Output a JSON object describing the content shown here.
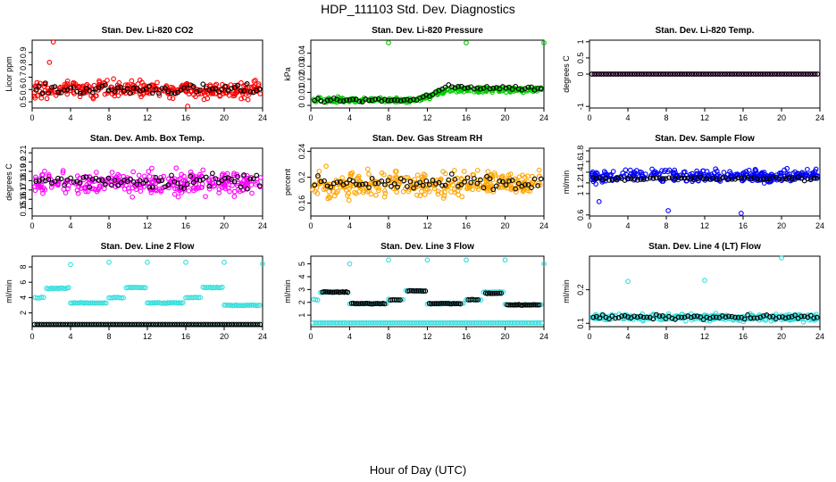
{
  "figure": {
    "title": "HDP_111103  Std. Dev. Diagnostics",
    "xlabel": "Hour of Day (UTC)"
  },
  "chart_data": [
    {
      "type": "scatter",
      "title": "Stan. Dev. Li-820 CO2",
      "ylabel": "Licor ppm",
      "xlim": [
        0,
        24
      ],
      "xticks": [
        0,
        4,
        8,
        12,
        16,
        20,
        24
      ],
      "ylim": [
        0.45,
        1.0
      ],
      "yticks": [
        0.5,
        0.6,
        0.7,
        0.8,
        0.9
      ],
      "series": [
        {
          "name": "samples",
          "color": "#ff0000",
          "style": "dense",
          "center": 0.6,
          "spread": 0.07,
          "outliers": [
            {
              "x": 2.2,
              "y": 0.99
            },
            {
              "x": 1.8,
              "y": 0.82
            },
            {
              "x": 16.2,
              "y": 0.44
            }
          ]
        },
        {
          "name": "means",
          "color": "#000000",
          "style": "sparse",
          "center": 0.6,
          "spread": 0.05
        }
      ]
    },
    {
      "type": "scatter",
      "title": "Stan. Dev. Li-820 Pressure",
      "ylabel": "kPa",
      "xlim": [
        0,
        24
      ],
      "xticks": [
        0,
        4,
        8,
        12,
        16,
        20,
        24
      ],
      "ylim": [
        -0.002,
        0.05
      ],
      "yticks": [
        0.0,
        0.01,
        0.02,
        0.03,
        0.04
      ],
      "series": [
        {
          "name": "samples",
          "color": "#00cc00",
          "style": "dense",
          "center": 0.004,
          "spread": 0.002,
          "trend": [
            {
              "x": 0,
              "y": 0.004
            },
            {
              "x": 11,
              "y": 0.004
            },
            {
              "x": 14,
              "y": 0.012
            },
            {
              "x": 24,
              "y": 0.012
            }
          ],
          "outliers": [
            {
              "x": 8,
              "y": 0.048
            },
            {
              "x": 16,
              "y": 0.048
            },
            {
              "x": 24,
              "y": 0.048
            }
          ]
        },
        {
          "name": "means",
          "color": "#000000",
          "style": "sparse",
          "center": 0.004,
          "spread": 0.002,
          "trend": [
            {
              "x": 0,
              "y": 0.004
            },
            {
              "x": 11,
              "y": 0.004
            },
            {
              "x": 14,
              "y": 0.014
            },
            {
              "x": 24,
              "y": 0.013
            }
          ]
        }
      ]
    },
    {
      "type": "scatter",
      "title": "Stan. Dev. Li-820 Temp.",
      "ylabel": "degrees C",
      "xlim": [
        0,
        24
      ],
      "xticks": [
        0,
        4,
        8,
        12,
        16,
        20,
        24
      ],
      "ylim": [
        -1.05,
        1.05
      ],
      "yticks": [
        -1.0,
        0.0,
        0.5,
        1.0
      ],
      "series": [
        {
          "name": "samples",
          "color": "#ff00ff",
          "style": "line",
          "center": 0.0,
          "spread": 0.0
        },
        {
          "name": "means",
          "color": "#000000",
          "style": "line",
          "center": 0.0,
          "spread": 0.0
        }
      ]
    },
    {
      "type": "scatter",
      "title": "Stan. Dev. Amb. Box Temp.",
      "ylabel": "degrees C",
      "xlim": [
        0,
        24
      ],
      "xticks": [
        0,
        4,
        8,
        12,
        16,
        20,
        24
      ],
      "ylim": [
        0.142,
        0.215
      ],
      "yticks": [
        0.15,
        0.16,
        0.17,
        0.18,
        0.19,
        0.2,
        0.21
      ],
      "series": [
        {
          "name": "samples",
          "color": "#ff00ff",
          "style": "dense",
          "center": 0.178,
          "spread": 0.013
        },
        {
          "name": "means",
          "color": "#000000",
          "style": "sparse",
          "center": 0.18,
          "spread": 0.01
        }
      ]
    },
    {
      "type": "scatter",
      "title": "Stan. Dev. Gas Stream RH",
      "ylabel": "percent",
      "xlim": [
        0,
        24
      ],
      "xticks": [
        0,
        4,
        8,
        12,
        16,
        20,
        24
      ],
      "ylim": [
        0.14,
        0.245
      ],
      "yticks": [
        0.16,
        0.2,
        0.24
      ],
      "series": [
        {
          "name": "samples",
          "color": "#ffa500",
          "style": "dense",
          "center": 0.19,
          "spread": 0.02
        },
        {
          "name": "means",
          "color": "#000000",
          "style": "sparse",
          "center": 0.19,
          "spread": 0.015
        }
      ]
    },
    {
      "type": "scatter",
      "title": "Stan. Dev. Sample Flow",
      "ylabel": "ml/min",
      "xlim": [
        0,
        24
      ],
      "xticks": [
        0,
        4,
        8,
        12,
        16,
        20,
        24
      ],
      "ylim": [
        0.58,
        1.85
      ],
      "yticks": [
        0.6,
        1.0,
        1.2,
        1.4,
        1.6,
        1.8
      ],
      "series": [
        {
          "name": "samples",
          "color": "#0000ff",
          "style": "dense",
          "center": 1.33,
          "spread": 0.12,
          "outliers": [
            {
              "x": 8.2,
              "y": 0.68
            },
            {
              "x": 15.8,
              "y": 0.63
            },
            {
              "x": 1,
              "y": 0.85
            }
          ]
        },
        {
          "name": "means",
          "color": "#000000",
          "style": "sparse",
          "center": 1.28,
          "spread": 0.04
        }
      ]
    },
    {
      "type": "scatter",
      "title": "Stan. Dev. Line 2 Flow",
      "ylabel": "ml/min",
      "xlim": [
        0,
        24
      ],
      "xticks": [
        0,
        4,
        8,
        12,
        16,
        20,
        24
      ],
      "ylim": [
        0.2,
        9.4
      ],
      "yticks": [
        2,
        4,
        6,
        8
      ],
      "series": [
        {
          "name": "line-flow",
          "color": "#33dddd",
          "style": "steps",
          "spread": 0.12,
          "steps": [
            [
              0.3,
              1.2,
              4.0
            ],
            [
              1.5,
              3.8,
              5.2
            ],
            [
              4.0,
              7.7,
              3.3
            ],
            [
              8.0,
              9.5,
              4.0
            ],
            [
              9.8,
              11.8,
              5.3
            ],
            [
              12.0,
              15.7,
              3.3
            ],
            [
              16.0,
              17.5,
              4.0
            ],
            [
              17.8,
              19.8,
              5.3
            ],
            [
              20.0,
              23.7,
              3.0
            ]
          ],
          "outliers": [
            {
              "x": 4,
              "y": 8.3
            },
            {
              "x": 8,
              "y": 8.6
            },
            {
              "x": 12,
              "y": 8.6
            },
            {
              "x": 16,
              "y": 8.6
            },
            {
              "x": 20,
              "y": 8.6
            },
            {
              "x": 24,
              "y": 8.4
            }
          ]
        },
        {
          "name": "baseline",
          "color": "#33dddd",
          "style": "line",
          "center": 0.5,
          "spread": 0.0
        },
        {
          "name": "means",
          "color": "#000000",
          "style": "line",
          "center": 0.5,
          "spread": 0.0
        }
      ]
    },
    {
      "type": "scatter",
      "title": "Stan. Dev. Line 3 Flow",
      "ylabel": "ml/min",
      "xlim": [
        0,
        24
      ],
      "xticks": [
        0,
        4,
        8,
        12,
        16,
        20,
        24
      ],
      "ylim": [
        0.1,
        5.6
      ],
      "yticks": [
        1,
        2,
        3,
        4,
        5
      ],
      "series": [
        {
          "name": "line-flow",
          "color": "#33dddd",
          "style": "steps",
          "spread": 0.07,
          "steps": [
            [
              0.3,
              0.7,
              2.2
            ],
            [
              1.0,
              3.8,
              2.8
            ],
            [
              4.0,
              7.8,
              1.9
            ],
            [
              8.0,
              9.5,
              2.2
            ],
            [
              9.8,
              11.8,
              2.9
            ],
            [
              12.0,
              15.7,
              1.9
            ],
            [
              16.0,
              17.5,
              2.2
            ],
            [
              17.8,
              19.8,
              2.8
            ],
            [
              20.0,
              23.7,
              1.8
            ]
          ],
          "outliers": [
            {
              "x": 4,
              "y": 5.0
            },
            {
              "x": 8,
              "y": 5.3
            },
            {
              "x": 12,
              "y": 5.3
            },
            {
              "x": 16,
              "y": 5.3
            },
            {
              "x": 20,
              "y": 5.3
            },
            {
              "x": 24,
              "y": 5.0
            }
          ]
        },
        {
          "name": "baseline",
          "color": "#33dddd",
          "style": "line",
          "center": 0.4,
          "spread": 0.0
        },
        {
          "name": "means",
          "color": "#000000",
          "style": "steps",
          "spread": 0.05,
          "steps": [
            [
              1.2,
              3.8,
              2.8
            ],
            [
              4.2,
              7.6,
              1.9
            ],
            [
              8.2,
              9.2,
              2.2
            ],
            [
              10.0,
              11.8,
              2.9
            ],
            [
              12.2,
              15.4,
              1.9
            ],
            [
              16.2,
              17.2,
              2.2
            ],
            [
              18.0,
              19.6,
              2.7
            ],
            [
              20.2,
              23.5,
              1.8
            ]
          ]
        }
      ]
    },
    {
      "type": "scatter",
      "title": "Stan. Dev. Line 4 (LT) Flow",
      "ylabel": "ml/min",
      "xlim": [
        0,
        24
      ],
      "xticks": [
        0,
        4,
        8,
        12,
        16,
        20,
        24
      ],
      "ylim": [
        0.09,
        0.3
      ],
      "yticks": [
        0.1,
        0.2
      ],
      "series": [
        {
          "name": "samples",
          "color": "#33dddd",
          "style": "dense",
          "center": 0.118,
          "spread": 0.01,
          "outliers": [
            {
              "x": 4,
              "y": 0.225
            },
            {
              "x": 12,
              "y": 0.228
            },
            {
              "x": 20,
              "y": 0.298
            }
          ]
        },
        {
          "name": "means",
          "color": "#000000",
          "style": "sparse",
          "center": 0.118,
          "spread": 0.008
        }
      ]
    }
  ]
}
